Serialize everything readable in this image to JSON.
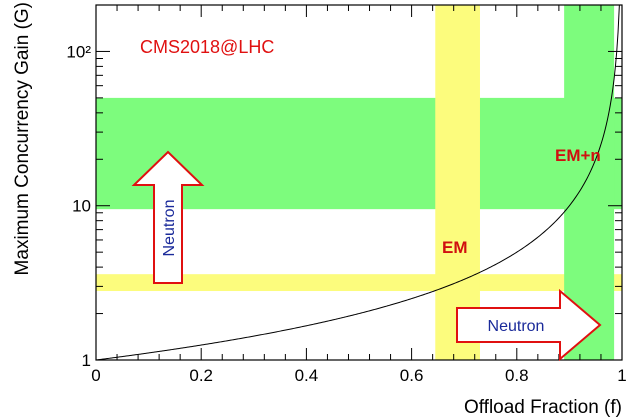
{
  "chart_data": {
    "type": "line",
    "title": "",
    "xlabel": "Offload Fraction (f)",
    "ylabel": "Maximum Concurrency Gain (G)",
    "xlim": [
      0,
      1
    ],
    "ylim": [
      1,
      200
    ],
    "yscale": "log",
    "grid": false,
    "x_ticks": [
      0,
      0.2,
      0.4,
      0.6,
      0.8,
      1
    ],
    "x_tick_labels": [
      "0",
      "0.2",
      "0.4",
      "0.6",
      "0.8",
      "1"
    ],
    "y_ticks": [
      1,
      10,
      100
    ],
    "y_tick_labels": [
      "1",
      "10",
      "10²"
    ],
    "series": [
      {
        "formula": "G = 1 / (1 - f)",
        "color": "#000000"
      }
    ],
    "bands": [
      {
        "orientation": "horizontal",
        "y": [
          9.5,
          50
        ],
        "color": "#7dfc7d"
      },
      {
        "orientation": "horizontal",
        "y": [
          2.8,
          3.6
        ],
        "color": "#fcfc7d"
      },
      {
        "orientation": "vertical",
        "x": [
          0.645,
          0.73
        ],
        "color": "#fcfc7d"
      },
      {
        "orientation": "vertical",
        "x": [
          0.89,
          0.985
        ],
        "color": "#7dfc7d"
      }
    ],
    "annotations": {
      "source": "CMS2018@LHC",
      "em": "EM",
      "em_n": "EM+n",
      "neutron_up": "Neutron",
      "neutron_right": "Neutron"
    },
    "colors": {
      "green_band": "#7dfc7d",
      "yellow_band": "#fcfc7d",
      "arrow_outline": "#e01010",
      "neutron_text": "#1a2a9a",
      "annotation_red": "#e01010"
    }
  }
}
